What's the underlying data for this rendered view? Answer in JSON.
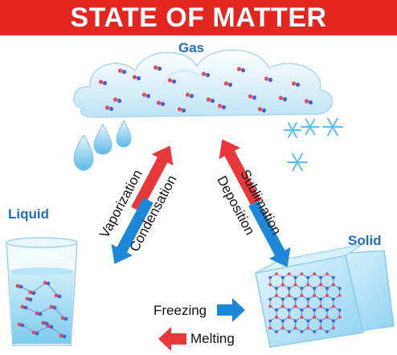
{
  "title": "STATE OF MATTER",
  "states": {
    "gas": "Gas",
    "liquid": "Liquid",
    "solid": "Solid"
  },
  "processes": {
    "vaporization": "Vaporization",
    "condensation": "Condensation",
    "sublimation": "Sublimation",
    "deposition": "Deposition",
    "freezing": "Freezing",
    "melting": "Melting"
  },
  "colors": {
    "banner": "#e3261f",
    "state_label": "#1f6ec4",
    "arrow_red": "#e8383a",
    "arrow_blue": "#1e88d8",
    "molecule_red": "#e04b63",
    "molecule_blue": "#4f5fd0"
  }
}
